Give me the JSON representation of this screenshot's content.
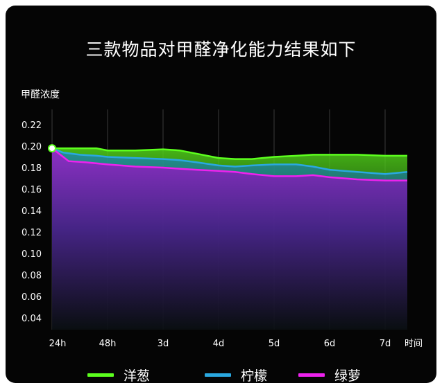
{
  "title": "三款物品对甲醛净化能力结果如下",
  "chart_data": {
    "type": "area",
    "title": "三款物品对甲醛净化能力结果如下",
    "ylabel": "甲醛浓度",
    "xlabel": "时间",
    "x": [
      "24h",
      "48h",
      "3d",
      "4d",
      "5d",
      "6d",
      "7d"
    ],
    "yticks": [
      "0.22",
      "0.20",
      "0.18",
      "0.16",
      "0.14",
      "0.12",
      "0.10",
      "0.08",
      "0.06",
      "0.04"
    ],
    "ylim": [
      0.03,
      0.22
    ],
    "grid": "vertical",
    "legend_position": "bottom",
    "series": [
      {
        "name": "洋葱",
        "color": "#5cff1e",
        "x": [
          0,
          0.2,
          0.5,
          0.8,
          1,
          1.5,
          2,
          2.3,
          2.6,
          3,
          3.3,
          3.6,
          4,
          4.4,
          4.7,
          5,
          5.5,
          6,
          6.4
        ],
        "values": [
          0.198,
          0.198,
          0.198,
          0.198,
          0.196,
          0.196,
          0.197,
          0.196,
          0.193,
          0.189,
          0.188,
          0.188,
          0.19,
          0.191,
          0.192,
          0.192,
          0.192,
          0.191,
          0.191
        ]
      },
      {
        "name": "柠檬",
        "color": "#2aa8e0",
        "x": [
          0,
          0.2,
          0.5,
          0.8,
          1,
          1.5,
          2,
          2.3,
          2.6,
          3,
          3.3,
          3.6,
          4,
          4.4,
          4.7,
          5,
          5.5,
          6,
          6.4
        ],
        "values": [
          0.198,
          0.194,
          0.192,
          0.191,
          0.19,
          0.189,
          0.188,
          0.187,
          0.185,
          0.182,
          0.181,
          0.182,
          0.183,
          0.183,
          0.181,
          0.178,
          0.176,
          0.174,
          0.176
        ]
      },
      {
        "name": "绿萝",
        "color": "#ee22ee",
        "x": [
          0,
          0.15,
          0.3,
          0.6,
          1,
          1.5,
          2,
          2.3,
          2.6,
          3,
          3.3,
          3.6,
          4,
          4.4,
          4.7,
          5,
          5.5,
          6,
          6.4
        ],
        "values": [
          0.198,
          0.192,
          0.186,
          0.185,
          0.183,
          0.181,
          0.18,
          0.179,
          0.178,
          0.177,
          0.176,
          0.174,
          0.172,
          0.172,
          0.173,
          0.171,
          0.169,
          0.168,
          0.168
        ]
      }
    ]
  }
}
